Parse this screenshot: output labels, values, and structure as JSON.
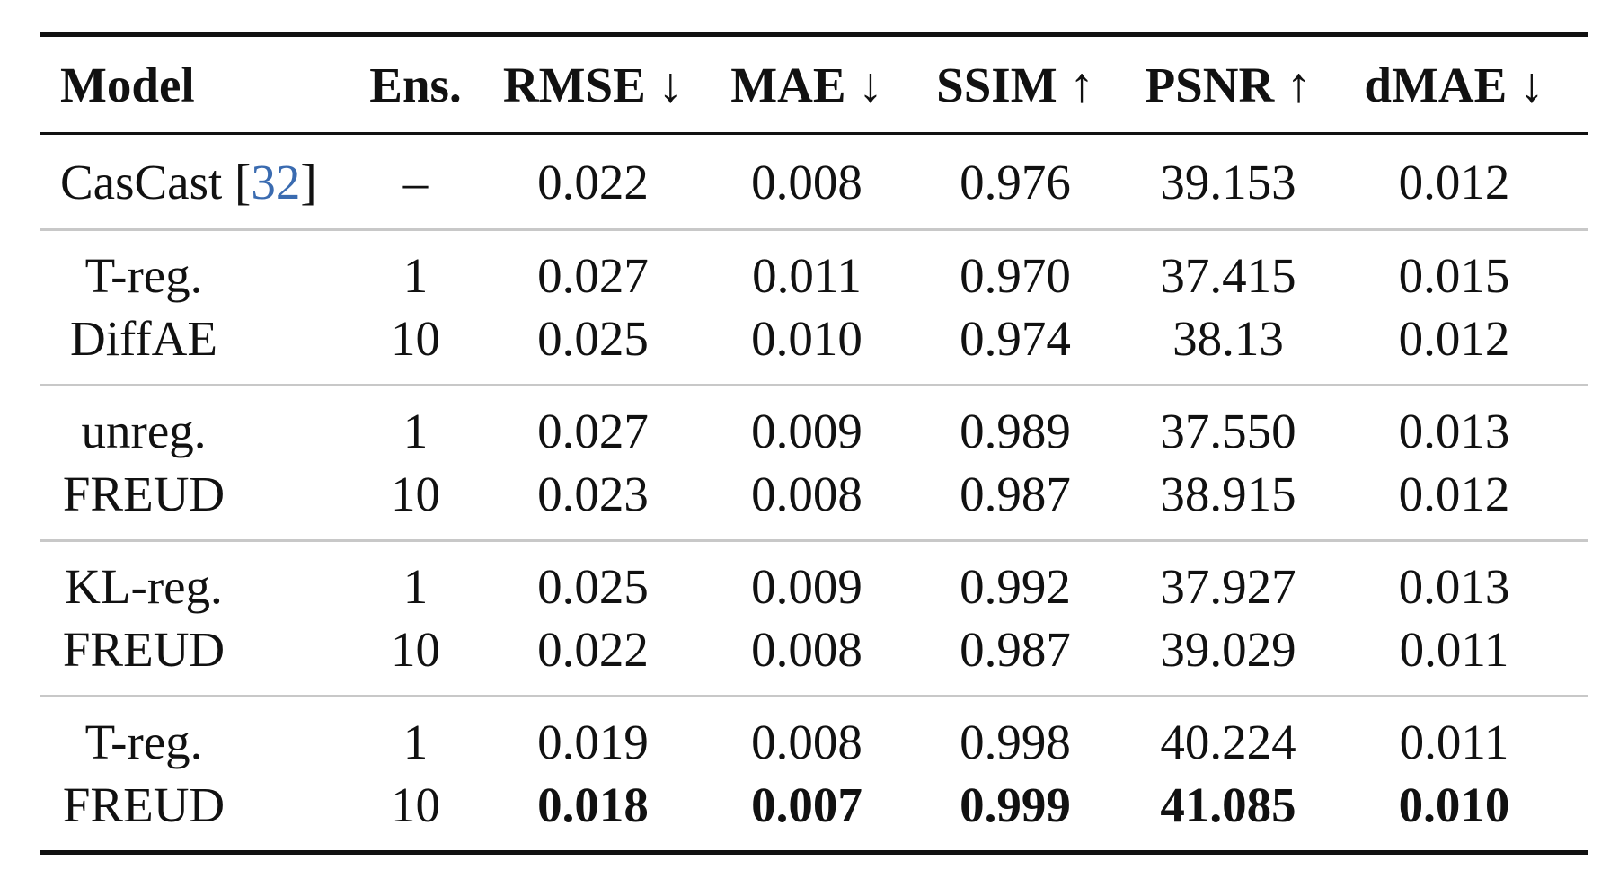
{
  "table": {
    "headers": {
      "model": "Model",
      "ens": "Ens.",
      "rmse": "RMSE ↓",
      "mae": "MAE ↓",
      "ssim": "SSIM ↑",
      "psnr": "PSNR ↑",
      "dmae": "dMAE ↓"
    },
    "baseline": {
      "model": "CasCast ",
      "cite_open": "[",
      "cite_num": "32",
      "cite_close": "]",
      "ens": "–",
      "rmse": "0.022",
      "mae": "0.008",
      "ssim": "0.976",
      "psnr": "39.153",
      "dmae": "0.012"
    },
    "groups": [
      {
        "model_line1": "T-reg.",
        "model_line2": "DiffAE",
        "rows": [
          {
            "ens": "1",
            "rmse": "0.027",
            "mae": "0.011",
            "ssim": "0.970",
            "psnr": "37.415",
            "dmae": "0.015"
          },
          {
            "ens": "10",
            "rmse": "0.025",
            "mae": "0.010",
            "ssim": "0.974",
            "psnr": "38.13",
            "dmae": "0.012"
          }
        ]
      },
      {
        "model_line1": "unreg.",
        "model_line2": "FREUD",
        "rows": [
          {
            "ens": "1",
            "rmse": "0.027",
            "mae": "0.009",
            "ssim": "0.989",
            "psnr": "37.550",
            "dmae": "0.013"
          },
          {
            "ens": "10",
            "rmse": "0.023",
            "mae": "0.008",
            "ssim": "0.987",
            "psnr": "38.915",
            "dmae": "0.012"
          }
        ]
      },
      {
        "model_line1": "KL-reg.",
        "model_line2": "FREUD",
        "rows": [
          {
            "ens": "1",
            "rmse": "0.025",
            "mae": "0.009",
            "ssim": "0.992",
            "psnr": "37.927",
            "dmae": "0.013"
          },
          {
            "ens": "10",
            "rmse": "0.022",
            "mae": "0.008",
            "ssim": "0.987",
            "psnr": "39.029",
            "dmae": "0.011"
          }
        ]
      },
      {
        "model_line1": "T-reg.",
        "model_line2": "FREUD",
        "rows": [
          {
            "ens": "1",
            "rmse": "0.019",
            "mae": "0.008",
            "ssim": "0.998",
            "psnr": "40.224",
            "dmae": "0.011"
          },
          {
            "ens": "10",
            "rmse": "0.018",
            "mae": "0.007",
            "ssim": "0.999",
            "psnr": "41.085",
            "dmae": "0.010"
          }
        ]
      }
    ]
  }
}
